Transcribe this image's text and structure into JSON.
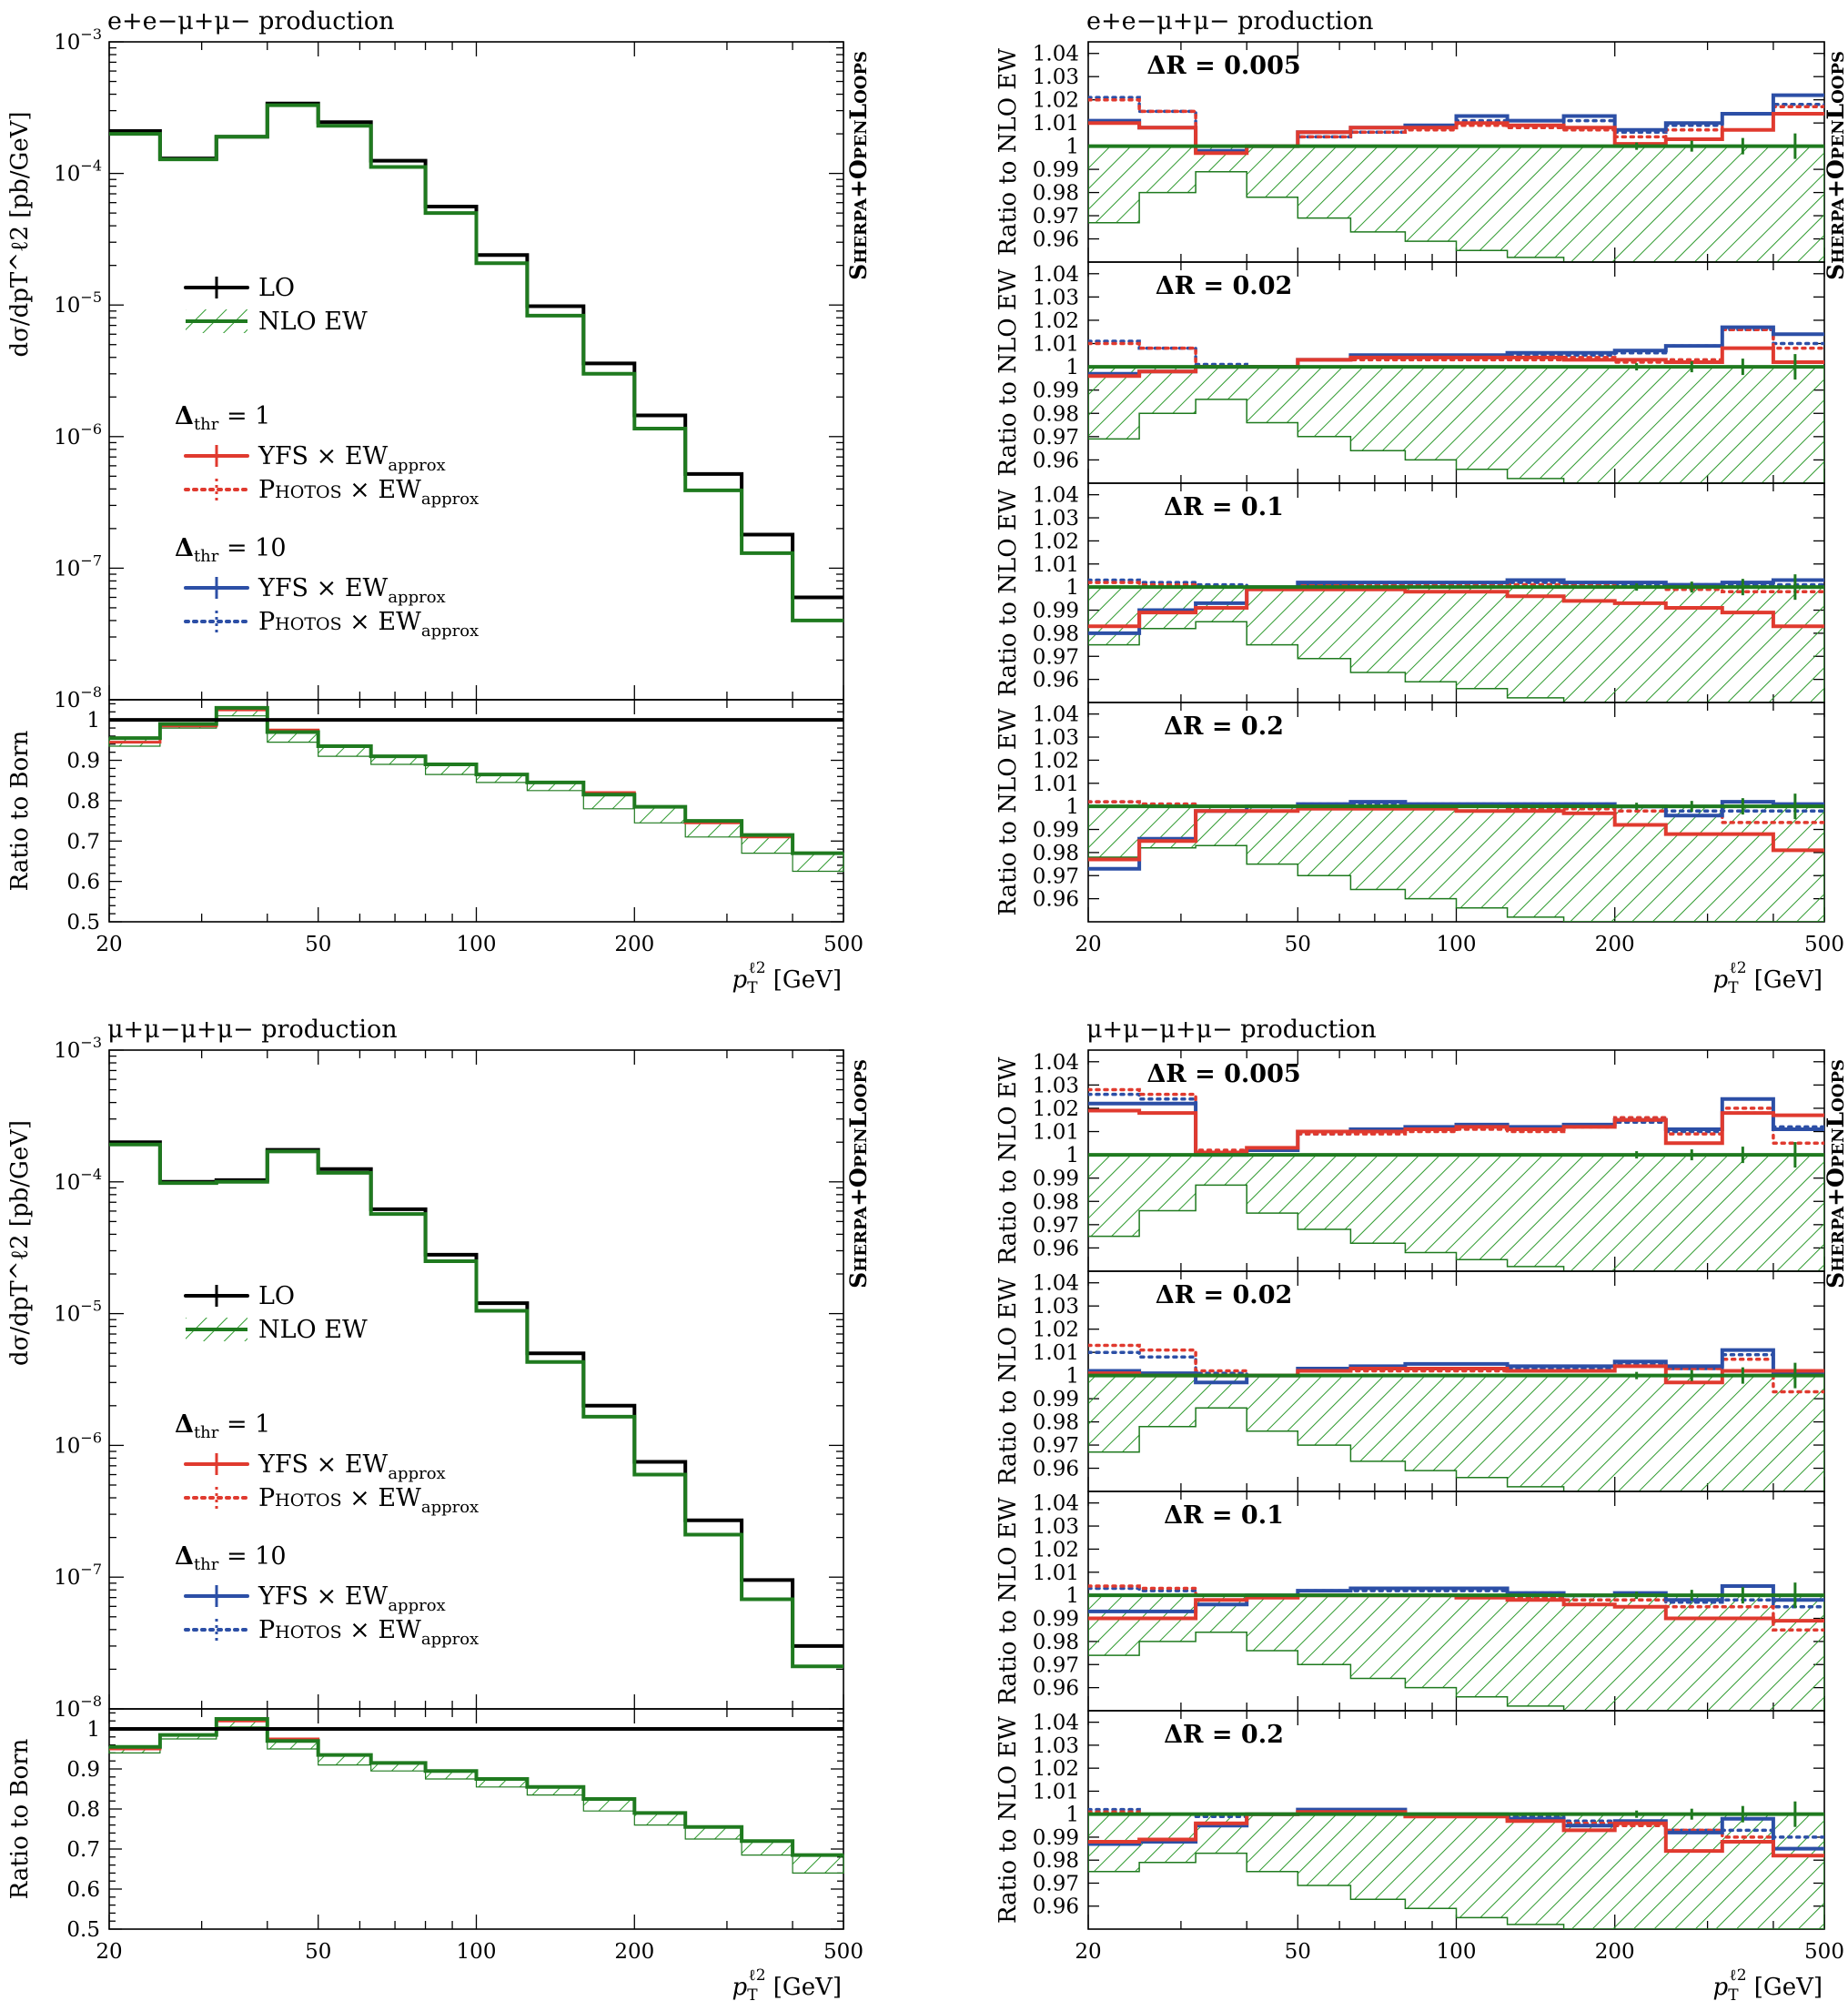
{
  "colors": {
    "lo": "#000000",
    "nlo_ew": "#1f7a1f",
    "nlo_hatch": "#2e9a2e",
    "red": "#e03a2f",
    "blue": "#2c4fa6"
  },
  "watermark": "Sherpa+OpenLoops",
  "legend": {
    "lo": "LO",
    "nlo_ew": "NLO EW",
    "dthr1": "Δthr = 1",
    "dthr10": "Δthr = 10",
    "yfs": "YFS × EWapprox",
    "photos": "Photos × EWapprox"
  },
  "chart_data": [
    {
      "type": "line",
      "title": "e+e−μ+μ− production",
      "xlabel": "pT^ℓ2 [GeV]",
      "xscale": "log",
      "xlim": [
        20,
        500
      ],
      "xticks": [
        "20",
        "50",
        "100",
        "200",
        "500"
      ],
      "bin_edges": [
        20,
        25,
        32,
        40,
        50,
        63,
        80,
        100,
        125,
        160,
        200,
        250,
        320,
        400,
        500
      ],
      "main": {
        "ylabel": "dσ/dpT^ℓ2 [pb/GeV]",
        "yscale": "log",
        "ylim": [
          1e-08,
          0.001
        ],
        "yticks": [
          "10−8",
          "10−7",
          "10−6",
          "10−5",
          "10−4",
          "10−3"
        ],
        "series": [
          {
            "name": "LO",
            "values": [
              0.00021,
              0.00013,
              0.00019,
              0.00034,
              0.000245,
              0.000125,
              5.6e-05,
              2.4e-05,
              9.8e-06,
              3.6e-06,
              1.45e-06,
              5.2e-07,
              1.8e-07,
              6e-08
            ]
          },
          {
            "name": "NLO EW",
            "values": [
              0.0002,
              0.000128,
              0.00019,
              0.00033,
              0.00023,
              0.000112,
              5e-05,
              2.08e-05,
              8.3e-06,
              3e-06,
              1.15e-06,
              3.9e-07,
              1.3e-07,
              4e-08
            ]
          }
        ]
      },
      "ratio": {
        "ylabel": "Ratio to Born",
        "ylim": [
          0.5,
          1.05
        ],
        "yticks": [
          "0.5",
          "0.6",
          "0.7",
          "0.8",
          "0.9",
          "1"
        ],
        "series": [
          {
            "name": "NLO EW",
            "values": [
              0.955,
              0.99,
              1.03,
              0.97,
              0.935,
              0.91,
              0.89,
              0.865,
              0.845,
              0.815,
              0.785,
              0.75,
              0.715,
              0.67
            ]
          },
          {
            "name": "YFS × EWapprox",
            "values": [
              0.945,
              0.985,
              1.025,
              0.975,
              0.935,
              0.91,
              0.89,
              0.865,
              0.845,
              0.82,
              0.785,
              0.745,
              0.71,
              0.67
            ]
          },
          {
            "name": "NLO EW band low",
            "values": [
              0.935,
              0.98,
              1.01,
              0.945,
              0.91,
              0.89,
              0.865,
              0.845,
              0.825,
              0.78,
              0.745,
              0.71,
              0.67,
              0.625
            ]
          }
        ]
      },
      "subpanels": [
        {
          "label": "ΔR = 0.005",
          "yfs_dthr1": [
            1.01,
            1.008,
            0.997,
            1.0,
            1.006,
            1.008,
            1.008,
            1.01,
            1.009,
            1.008,
            1.001,
            1.003,
            1.007,
            1.014
          ],
          "photos_dthr1": [
            1.02,
            1.015,
            0.998,
            1.0,
            1.004,
            1.006,
            1.007,
            1.009,
            1.008,
            1.007,
            1.004,
            1.007,
            1.014,
            1.017
          ],
          "yfs_dthr10": [
            1.011,
            1.008,
            0.998,
            1.0,
            1.006,
            1.008,
            1.009,
            1.013,
            1.011,
            1.013,
            1.007,
            1.01,
            1.014,
            1.022
          ],
          "photos_dthr10": [
            1.021,
            1.015,
            0.998,
            1.0,
            1.004,
            1.006,
            1.008,
            1.011,
            1.009,
            1.011,
            1.006,
            1.009,
            1.014,
            1.018
          ],
          "band_low": [
            0.967,
            0.98,
            0.989,
            0.978,
            0.969,
            0.963,
            0.959,
            0.955,
            0.952,
            0.95,
            0.95,
            0.95,
            0.95,
            0.95
          ]
        },
        {
          "label": "ΔR = 0.02",
          "yfs_dthr1": [
            0.996,
            0.998,
            1.0,
            1.0,
            1.003,
            1.004,
            1.004,
            1.004,
            1.004,
            1.003,
            1.003,
            1.002,
            1.008,
            1.002
          ],
          "photos_dthr1": [
            1.01,
            1.008,
            1.0,
            1.0,
            1.003,
            1.003,
            1.003,
            1.003,
            1.003,
            1.004,
            1.002,
            1.003,
            1.016,
            1.008
          ],
          "yfs_dthr10": [
            0.997,
            0.998,
            1.0,
            1.0,
            1.003,
            1.005,
            1.005,
            1.005,
            1.006,
            1.006,
            1.007,
            1.009,
            1.017,
            1.014
          ],
          "photos_dthr10": [
            1.011,
            1.008,
            1.001,
            1.0,
            1.003,
            1.004,
            1.004,
            1.004,
            1.005,
            1.005,
            1.006,
            1.009,
            1.016,
            1.01
          ],
          "band_low": [
            0.969,
            0.98,
            0.986,
            0.976,
            0.97,
            0.964,
            0.96,
            0.956,
            0.952,
            0.95,
            0.95,
            0.95,
            0.95,
            0.95
          ]
        },
        {
          "label": "ΔR = 0.1",
          "yfs_dthr1": [
            0.983,
            0.989,
            0.991,
            0.999,
            0.999,
            0.999,
            0.998,
            0.998,
            0.996,
            0.994,
            0.993,
            0.991,
            0.989,
            0.983
          ],
          "photos_dthr1": [
            1.002,
            1.001,
            1.0,
            1.0,
            1.001,
            1.001,
            1.001,
            1.001,
            1.001,
            1.001,
            1.0,
            0.999,
            0.998,
            0.998
          ],
          "yfs_dthr10": [
            0.98,
            0.99,
            0.993,
            1.0,
            1.002,
            1.002,
            1.002,
            1.002,
            1.003,
            1.002,
            1.002,
            1.001,
            1.002,
            1.003
          ],
          "photos_dthr10": [
            1.003,
            1.002,
            1.001,
            1.0,
            1.001,
            1.002,
            1.002,
            1.002,
            1.002,
            1.002,
            1.001,
            1.001,
            1.001,
            1.001
          ],
          "band_low": [
            0.975,
            0.982,
            0.985,
            0.975,
            0.969,
            0.963,
            0.959,
            0.956,
            0.952,
            0.95,
            0.95,
            0.95,
            0.95,
            0.95
          ]
        },
        {
          "label": "ΔR = 0.2",
          "yfs_dthr1": [
            0.977,
            0.985,
            0.998,
            0.998,
            0.999,
            0.999,
            0.999,
            0.998,
            0.998,
            0.997,
            0.992,
            0.988,
            0.988,
            0.981
          ],
          "photos_dthr1": [
            1.002,
            1.001,
            1.0,
            1.0,
            1.0,
            1.0,
            1.0,
            1.0,
            0.999,
            0.999,
            0.998,
            0.996,
            0.993,
            0.993
          ],
          "yfs_dthr10": [
            0.973,
            0.986,
            0.998,
            1.0,
            1.001,
            1.002,
            1.001,
            1.001,
            1.001,
            1.001,
            1.0,
            0.996,
            1.002,
            1.001
          ],
          "photos_dthr10": [
            1.002,
            1.001,
            1.0,
            1.0,
            1.001,
            1.001,
            1.001,
            1.001,
            1.001,
            1.001,
            1.0,
            0.998,
            0.998,
            0.998
          ],
          "band_low": [
            0.978,
            0.982,
            0.983,
            0.975,
            0.97,
            0.964,
            0.96,
            0.956,
            0.952,
            0.95,
            0.95,
            0.95,
            0.95,
            0.95
          ]
        }
      ],
      "subpanel_ylabel": "Ratio to NLO EW",
      "subpanel_ylim": [
        0.95,
        1.045
      ],
      "subpanel_yticks": [
        "0.96",
        "0.97",
        "0.98",
        "0.99",
        "1",
        "1.01",
        "1.02",
        "1.03",
        "1.04"
      ]
    },
    {
      "type": "line",
      "title": "μ+μ−μ+μ− production",
      "xlabel": "pT^ℓ2 [GeV]",
      "xscale": "log",
      "xlim": [
        20,
        500
      ],
      "xticks": [
        "20",
        "50",
        "100",
        "200",
        "500"
      ],
      "bin_edges": [
        20,
        25,
        32,
        40,
        50,
        63,
        80,
        100,
        125,
        160,
        200,
        250,
        320,
        400,
        500
      ],
      "main": {
        "ylabel": "dσ/dpT^ℓ2 [pb/GeV]",
        "yscale": "log",
        "ylim": [
          1e-08,
          0.001
        ],
        "yticks": [
          "10−8",
          "10−7",
          "10−6",
          "10−5",
          "10−4",
          "10−3"
        ],
        "series": [
          {
            "name": "LO",
            "values": [
              0.0002,
              0.0001,
              0.000103,
              0.000175,
              0.000125,
              6.2e-05,
              2.8e-05,
              1.2e-05,
              5e-06,
              2e-06,
              7.5e-07,
              2.7e-07,
              9.5e-08,
              3e-08
            ]
          },
          {
            "name": "NLO EW",
            "values": [
              0.000192,
              9.8e-05,
              0.0001,
              0.00017,
              0.000117,
              5.7e-05,
              2.5e-05,
              1.05e-05,
              4.3e-06,
              1.65e-06,
              6e-07,
              2.1e-07,
              6.8e-08,
              2.1e-08
            ]
          }
        ]
      },
      "ratio": {
        "ylabel": "Ratio to Born",
        "ylim": [
          0.5,
          1.05
        ],
        "yticks": [
          "0.5",
          "0.6",
          "0.7",
          "0.8",
          "0.9",
          "1"
        ],
        "series": [
          {
            "name": "NLO EW",
            "values": [
              0.955,
              0.985,
              1.025,
              0.97,
              0.935,
              0.915,
              0.895,
              0.875,
              0.855,
              0.825,
              0.79,
              0.755,
              0.72,
              0.685
            ]
          },
          {
            "name": "YFS × EWapprox",
            "values": [
              0.95,
              0.985,
              1.02,
              0.975,
              0.935,
              0.915,
              0.895,
              0.875,
              0.855,
              0.825,
              0.79,
              0.755,
              0.72,
              0.685
            ]
          },
          {
            "name": "NLO EW band low",
            "values": [
              0.94,
              0.975,
              1.005,
              0.95,
              0.91,
              0.895,
              0.875,
              0.855,
              0.835,
              0.795,
              0.76,
              0.725,
              0.685,
              0.64
            ]
          }
        ]
      },
      "subpanels": [
        {
          "label": "ΔR = 0.005",
          "yfs_dthr1": [
            1.019,
            1.018,
            1.001,
            1.003,
            1.01,
            1.01,
            1.011,
            1.012,
            1.011,
            1.012,
            1.015,
            1.005,
            1.018,
            1.017
          ],
          "photos_dthr1": [
            1.028,
            1.026,
            1.002,
            1.003,
            1.009,
            1.009,
            1.01,
            1.011,
            1.01,
            1.012,
            1.016,
            1.009,
            1.02,
            1.005
          ],
          "yfs_dthr10": [
            1.022,
            1.022,
            1.0,
            1.002,
            1.01,
            1.011,
            1.012,
            1.013,
            1.012,
            1.013,
            1.015,
            1.011,
            1.024,
            1.011
          ],
          "photos_dthr10": [
            1.026,
            1.024,
            1.001,
            1.002,
            1.009,
            1.01,
            1.011,
            1.012,
            1.011,
            1.012,
            1.014,
            1.01,
            1.018,
            1.012
          ],
          "band_low": [
            0.965,
            0.976,
            0.987,
            0.975,
            0.968,
            0.962,
            0.958,
            0.955,
            0.952,
            0.95,
            0.95,
            0.95,
            0.95,
            0.95
          ]
        },
        {
          "label": "ΔR = 0.02",
          "yfs_dthr1": [
            1.001,
            1.0,
            1.0,
            1.0,
            1.002,
            1.003,
            1.003,
            1.003,
            1.002,
            1.002,
            1.004,
            0.997,
            1.002,
            1.002
          ],
          "photos_dthr1": [
            1.013,
            1.011,
            1.002,
            1.0,
            1.002,
            1.002,
            1.002,
            1.002,
            1.002,
            1.002,
            1.006,
            1.003,
            1.007,
            0.993
          ],
          "yfs_dthr10": [
            1.002,
            1.001,
            0.997,
            1.0,
            1.003,
            1.004,
            1.005,
            1.005,
            1.004,
            1.004,
            1.006,
            1.004,
            1.011,
            1.001
          ],
          "photos_dthr10": [
            1.01,
            1.008,
            1.001,
            1.0,
            1.002,
            1.003,
            1.003,
            1.003,
            1.003,
            1.003,
            1.005,
            1.003,
            1.009,
            1.002
          ],
          "band_low": [
            0.967,
            0.978,
            0.986,
            0.976,
            0.97,
            0.963,
            0.959,
            0.956,
            0.952,
            0.95,
            0.95,
            0.95,
            0.95,
            0.95
          ]
        },
        {
          "label": "ΔR = 0.1",
          "yfs_dthr1": [
            0.99,
            0.99,
            0.998,
            0.999,
            1.0,
            1.0,
            1.0,
            0.999,
            0.998,
            0.996,
            0.995,
            0.99,
            0.99,
            0.989
          ],
          "photos_dthr1": [
            1.004,
            1.003,
            1.0,
            1.0,
            1.0,
            1.0,
            1.0,
            1.0,
            0.999,
            0.998,
            0.998,
            0.995,
            0.995,
            0.985
          ],
          "yfs_dthr10": [
            0.993,
            0.993,
            0.996,
            1.0,
            1.002,
            1.003,
            1.003,
            1.003,
            1.001,
            1.0,
            1.001,
            0.998,
            1.004,
            0.998
          ],
          "photos_dthr10": [
            1.003,
            1.002,
            1.0,
            1.0,
            1.002,
            1.002,
            1.002,
            1.002,
            1.001,
            1.0,
            1.0,
            0.997,
            0.998,
            0.995
          ],
          "band_low": [
            0.974,
            0.98,
            0.984,
            0.976,
            0.97,
            0.964,
            0.96,
            0.956,
            0.952,
            0.95,
            0.95,
            0.95,
            0.95,
            0.95
          ]
        },
        {
          "label": "ΔR = 0.2",
          "yfs_dthr1": [
            0.988,
            0.989,
            0.996,
            1.0,
            1.001,
            1.001,
            0.999,
            0.999,
            0.997,
            0.993,
            0.996,
            0.984,
            0.988,
            0.982
          ],
          "photos_dthr1": [
            1.001,
            1.0,
            1.0,
            1.0,
            1.0,
            1.0,
            0.999,
            0.999,
            0.998,
            0.996,
            0.995,
            0.993,
            0.99,
            0.985
          ],
          "yfs_dthr10": [
            0.987,
            0.988,
            0.995,
            1.0,
            1.002,
            1.002,
            1.0,
            1.0,
            0.998,
            0.995,
            0.997,
            0.992,
            0.998,
            0.985
          ],
          "photos_dthr10": [
            1.002,
            1.0,
            0.999,
            1.0,
            1.001,
            1.001,
            1.0,
            1.0,
            0.999,
            0.997,
            0.997,
            0.993,
            0.993,
            0.99
          ],
          "band_low": [
            0.975,
            0.979,
            0.983,
            0.975,
            0.969,
            0.963,
            0.959,
            0.955,
            0.952,
            0.95,
            0.95,
            0.95,
            0.95,
            0.95
          ]
        }
      ],
      "subpanel_ylabel": "Ratio to NLO EW",
      "subpanel_ylim": [
        0.95,
        1.045
      ],
      "subpanel_yticks": [
        "0.96",
        "0.97",
        "0.98",
        "0.99",
        "1",
        "1.01",
        "1.02",
        "1.03",
        "1.04"
      ]
    }
  ]
}
